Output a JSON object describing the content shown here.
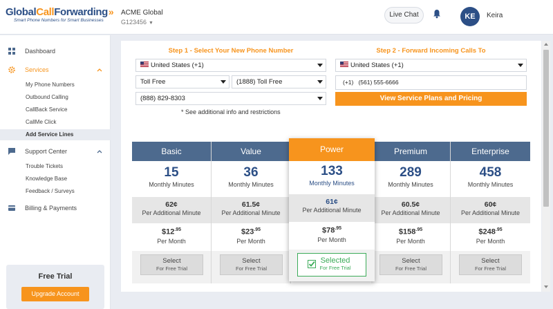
{
  "brand": {
    "name_part1": "Global",
    "name_part2": "Call",
    "name_part3": "Forwarding",
    "tagline": "Smart Phone Numbers for Smart Businesses",
    "accent": "#f7941d",
    "primary": "#2c4f86"
  },
  "header": {
    "account_name": "ACME Global",
    "account_number": "G123456",
    "live_chat": "Live Chat",
    "avatar_initials": "KE",
    "user_name": "Keira"
  },
  "sidebar": {
    "dashboard": "Dashboard",
    "services": "Services",
    "services_items": [
      "My Phone Numbers",
      "Outbound Calling",
      "CallBack Service",
      "CallMe Click",
      "Add Service Lines"
    ],
    "support": "Support Center",
    "support_items": [
      "Trouble Tickets",
      "Knowledge Base",
      "Feedback / Surveys"
    ],
    "billing": "Billing & Payments",
    "trial_title": "Free Trial",
    "upgrade_button": "Upgrade Account"
  },
  "step1": {
    "title": "Step 1 - Select Your New Phone Number",
    "country": "United States (+1)",
    "number_type": "Toll Free",
    "prefix": "(1888) Toll Free",
    "number": "(888) 829-8303",
    "note": "* See additional info and restrictions"
  },
  "step2": {
    "title": "Step 2 - Forward Incoming Calls To",
    "country": "United States (+1)",
    "dial_code": "(+1)",
    "forward_number": "(561) 555-6666",
    "view_button": "View Service Plans and Pricing"
  },
  "plans": [
    {
      "name": "Basic",
      "minutes": "15",
      "minutes_label": "Monthly Minutes",
      "additional": "62¢",
      "additional_label": "Per Additional Minute",
      "price": "$12",
      "cents": ".95",
      "per_month": "Per Month",
      "button": "Select",
      "button_sub": "For Free Trial"
    },
    {
      "name": "Value",
      "minutes": "36",
      "minutes_label": "Monthly Minutes",
      "additional": "61.5¢",
      "additional_label": "Per Additional Minute",
      "price": "$23",
      "cents": ".95",
      "per_month": "Per Month",
      "button": "Select",
      "button_sub": "For Free Trial"
    },
    {
      "name": "Power",
      "minutes": "133",
      "minutes_label": "Monthly Minutes",
      "additional": "61¢",
      "additional_label": "Per Additional Minute",
      "price": "$78",
      "cents": ".95",
      "per_month": "Per Month",
      "button": "Selected",
      "button_sub": "For Free Trial"
    },
    {
      "name": "Premium",
      "minutes": "289",
      "minutes_label": "Monthly Minutes",
      "additional": "60.5¢",
      "additional_label": "Per Additional Minute",
      "price": "$158",
      "cents": ".95",
      "per_month": "Per Month",
      "button": "Select",
      "button_sub": "For Free Trial"
    },
    {
      "name": "Enterprise",
      "minutes": "458",
      "minutes_label": "Monthly Minutes",
      "additional": "60¢",
      "additional_label": "Per Additional Minute",
      "price": "$248",
      "cents": ".95",
      "per_month": "Per Month",
      "button": "Select",
      "button_sub": "For Free Trial"
    }
  ]
}
